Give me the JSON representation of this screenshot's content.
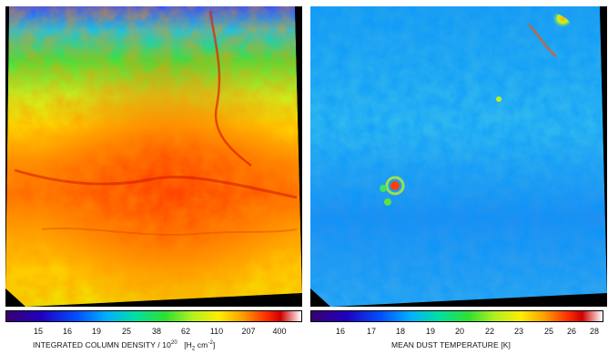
{
  "left_panel": {
    "colorbar_ticks": [
      "15",
      "16",
      "19",
      "25",
      "38",
      "62",
      "110",
      "207",
      "400"
    ],
    "label_main": "INTEGRATED COLUMN DENSITY / 10",
    "label_exp": "20",
    "label_unit": "[H",
    "label_unit_sub": "2",
    "label_unit_tail": " cm",
    "label_unit_exp": "-2",
    "label_close": "]"
  },
  "right_panel": {
    "colorbar_ticks": [
      "16",
      "17",
      "18",
      "19",
      "20",
      "22",
      "23",
      "25",
      "26",
      "28"
    ],
    "label": "MEAN DUST TEMPERATURE  [K]"
  },
  "colors": {
    "palette": [
      "#3a0070",
      "#2000c0",
      "#0050ff",
      "#00b0ff",
      "#00e0a0",
      "#30e030",
      "#b0f020",
      "#ffee00",
      "#ffa000",
      "#ff3000",
      "#d00000",
      "#ffffff"
    ]
  }
}
